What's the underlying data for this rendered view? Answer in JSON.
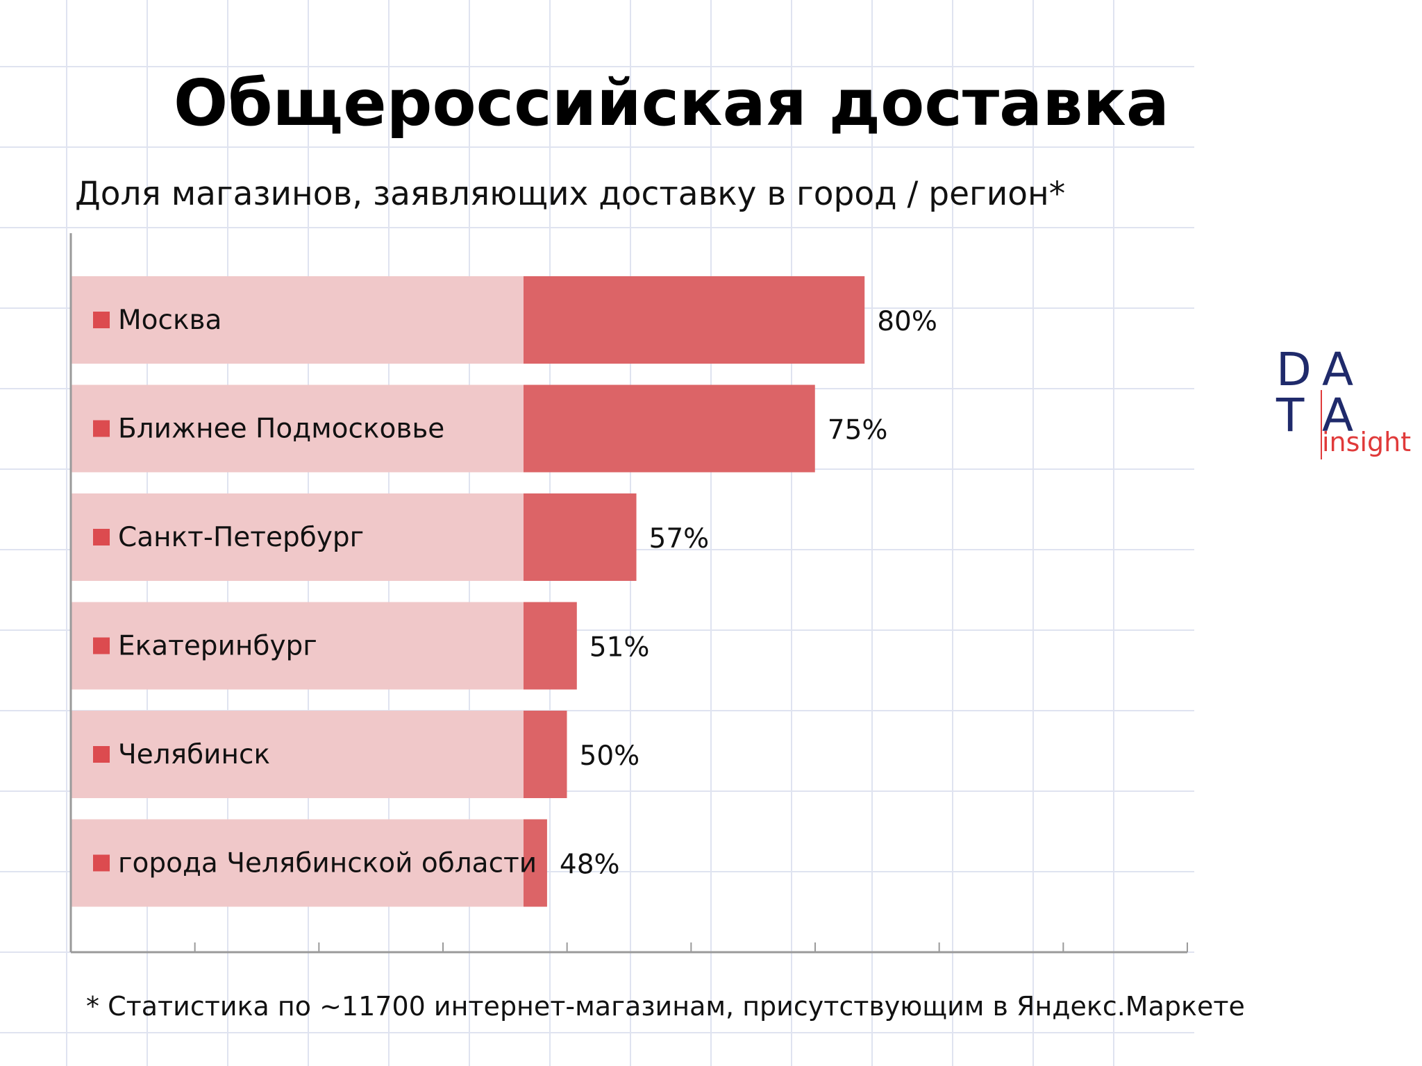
{
  "title": "Общероссийская доставка",
  "subtitle": "Доля магазинов, заявляющих доставку в город / регион*",
  "footnote": "* Статистика по ~11700 интернет-магазинам, присутствующим в Яндекс.Маркете",
  "logo": {
    "letters": [
      "D",
      "A",
      "T",
      "A"
    ],
    "tagline": "insight",
    "colors": {
      "D": "#1f2a6b",
      "A": "#1f2a6b",
      "T": "#1f2a6b",
      "tagline": "#e03a3a"
    }
  },
  "colors": {
    "bar": "#dc6467",
    "bar_light": "#f0c8c9",
    "legend_square": "#dc4b4f",
    "grid": "#dfe3f0"
  },
  "chart_data": {
    "type": "bar",
    "orientation": "horizontal",
    "categories": [
      "Москва",
      "Ближнее Подмосковье",
      "Санкт-Петербург",
      "Екатеринбург",
      "Челябинск",
      "города Челябинской области"
    ],
    "values": [
      80,
      75,
      57,
      51,
      50,
      48
    ],
    "value_labels": [
      "80%",
      "75%",
      "57%",
      "51%",
      "50%",
      "48%"
    ],
    "xlim": [
      0,
      90
    ],
    "grid": false
  }
}
